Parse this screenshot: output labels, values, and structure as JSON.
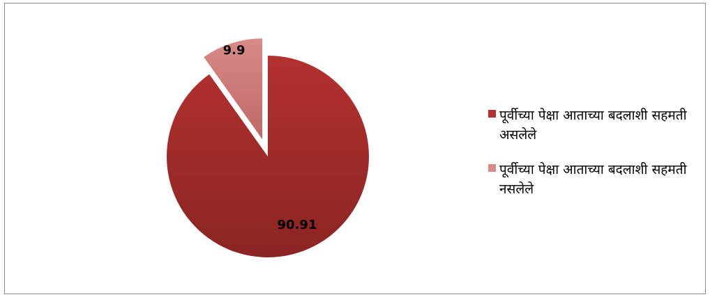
{
  "chart_data": {
    "type": "pie",
    "title": "",
    "exploded": true,
    "slices": [
      {
        "label": "पूर्वीच्या पेक्षा आताच्या बदलाशी सहमती असलेले",
        "value": 90.91,
        "value_label": "90.91",
        "color": "#b3312f",
        "color_dark": "#8a2523"
      },
      {
        "label": "पूर्वीच्या पेक्षा आताच्या बदलाशी सहमती नसलेले",
        "value": 9.9,
        "value_label": "9.9",
        "color": "#d98a88",
        "color_dark": "#bf6866"
      }
    ],
    "legend_position": "right"
  }
}
